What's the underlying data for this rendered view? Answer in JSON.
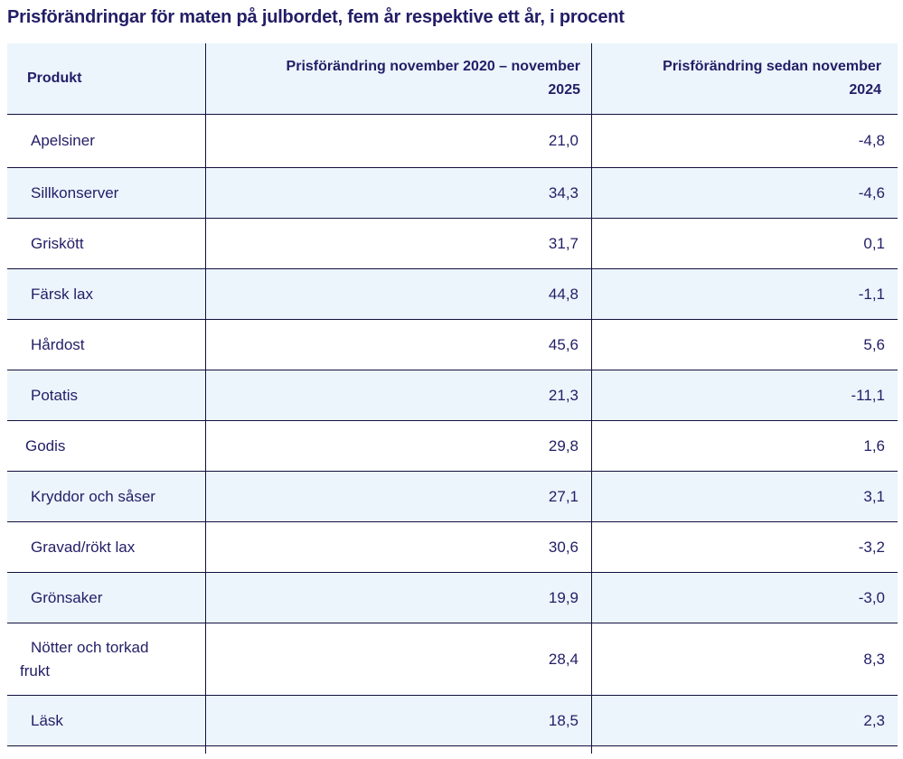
{
  "page": {
    "title": "Prisförändringar för maten på julbordet, fem år respektive ett år, i procent"
  },
  "table": {
    "columns": {
      "product": "Produkt",
      "five_year": "Prisförändring november 2020 – november\n2025",
      "one_year": "Prisförändring sedan november\n2024"
    },
    "rows": [
      {
        "product": "Apelsiner",
        "five_year": "21,0",
        "one_year": "-4,8"
      },
      {
        "product": "Sillkonserver",
        "five_year": "34,3",
        "one_year": "-4,6"
      },
      {
        "product": "Griskött",
        "five_year": "31,7",
        "one_year": "0,1"
      },
      {
        "product": "Färsk lax",
        "five_year": "44,8",
        "one_year": "-1,1"
      },
      {
        "product": "Hårdost",
        "five_year": "45,6",
        "one_year": "5,6"
      },
      {
        "product": "Potatis",
        "five_year": "21,3",
        "one_year": "-11,1"
      },
      {
        "product": "Godis",
        "five_year": "29,8",
        "one_year": "1,6"
      },
      {
        "product": "Kryddor och såser",
        "five_year": "27,1",
        "one_year": "3,1"
      },
      {
        "product": "Gravad/rökt lax",
        "five_year": "30,6",
        "one_year": "-3,2"
      },
      {
        "product": "Grönsaker",
        "five_year": "19,9",
        "one_year": "-3,0"
      },
      {
        "product": "Nötter och torkad\nfrukt",
        "five_year": "28,4",
        "one_year": "8,3"
      },
      {
        "product": "Läsk",
        "five_year": "18,5",
        "one_year": "2,3"
      }
    ]
  },
  "chart_data": {
    "type": "table",
    "title": "Prisförändringar för maten på julbordet, fem år respektive ett år, i procent",
    "columns": [
      "Produkt",
      "Prisförändring november 2020 – november 2025",
      "Prisförändring sedan november 2024"
    ],
    "categories": [
      "Apelsiner",
      "Sillkonserver",
      "Griskött",
      "Färsk lax",
      "Hårdost",
      "Potatis",
      "Godis",
      "Kryddor och såser",
      "Gravad/rökt lax",
      "Grönsaker",
      "Nötter och torkad frukt",
      "Läsk"
    ],
    "series": [
      {
        "name": "Prisförändring november 2020 – november 2025",
        "values": [
          21.0,
          34.3,
          31.7,
          44.8,
          45.6,
          21.3,
          29.8,
          27.1,
          30.6,
          19.9,
          28.4,
          18.5
        ]
      },
      {
        "name": "Prisförändring sedan november 2024",
        "values": [
          -4.8,
          -4.6,
          0.1,
          -1.1,
          5.6,
          -11.1,
          1.6,
          3.1,
          -3.2,
          -3.0,
          8.3,
          2.3
        ]
      }
    ],
    "unit": "procent",
    "decimal_separator": ","
  },
  "colors": {
    "text_navy": "#221e66",
    "rule_line": "#12103d",
    "row_alt_bg": "#ecf5fc",
    "row_bg": "#ffffff"
  }
}
